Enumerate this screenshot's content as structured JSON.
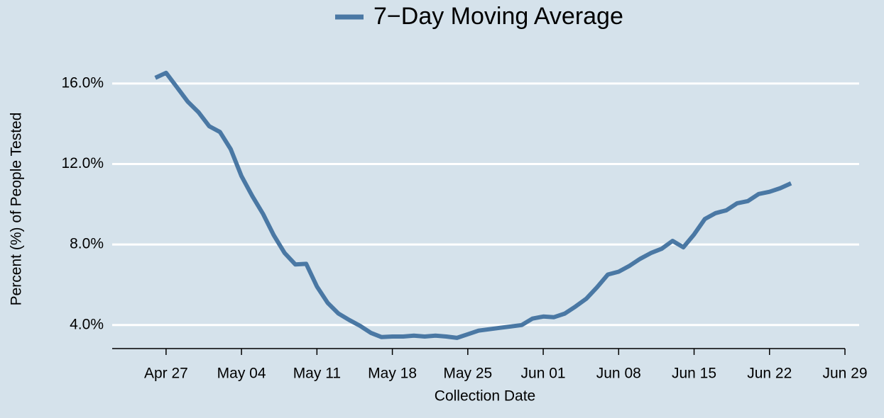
{
  "chart_data": {
    "type": "line",
    "x_label": "Collection Date",
    "y_label": "Percent (%) of People Tested",
    "x": [
      "Apr 26",
      "Apr 27",
      "Apr 28",
      "Apr 29",
      "Apr 30",
      "May 01",
      "May 02",
      "May 03",
      "May 04",
      "May 05",
      "May 06",
      "May 07",
      "May 08",
      "May 09",
      "May 10",
      "May 11",
      "May 12",
      "May 13",
      "May 14",
      "May 15",
      "May 16",
      "May 17",
      "May 18",
      "May 19",
      "May 20",
      "May 21",
      "May 22",
      "May 23",
      "May 24",
      "May 25",
      "May 26",
      "May 27",
      "May 28",
      "May 29",
      "May 30",
      "May 31",
      "Jun 01",
      "Jun 02",
      "Jun 03",
      "Jun 04",
      "Jun 05",
      "Jun 06",
      "Jun 07",
      "Jun 08",
      "Jun 09",
      "Jun 10",
      "Jun 11",
      "Jun 12",
      "Jun 13",
      "Jun 14",
      "Jun 15",
      "Jun 16",
      "Jun 17",
      "Jun 18",
      "Jun 19",
      "Jun 20",
      "Jun 21",
      "Jun 22",
      "Jun 23",
      "Jun 24"
    ],
    "series": [
      {
        "name": "7−Day Moving Average",
        "color": "#4a78a4",
        "values": [
          16.28,
          16.53,
          15.82,
          15.11,
          14.58,
          13.88,
          13.59,
          12.74,
          11.4,
          10.41,
          9.52,
          8.46,
          7.58,
          7.01,
          7.04,
          5.91,
          5.1,
          4.57,
          4.25,
          3.96,
          3.61,
          3.4,
          3.43,
          3.43,
          3.47,
          3.43,
          3.47,
          3.43,
          3.36,
          3.54,
          3.72,
          3.79,
          3.86,
          3.93,
          4.0,
          4.32,
          4.42,
          4.39,
          4.57,
          4.92,
          5.31,
          5.88,
          6.51,
          6.65,
          6.94,
          7.29,
          7.58,
          7.79,
          8.18,
          7.86,
          8.5,
          9.27,
          9.56,
          9.7,
          10.05,
          10.16,
          10.51,
          10.62,
          10.8,
          11.04
        ]
      }
    ],
    "xlim": [
      "Apr 22",
      "Jun 29"
    ],
    "xticks": [
      "Apr 27",
      "May 04",
      "May 11",
      "May 18",
      "May 25",
      "Jun 01",
      "Jun 08",
      "Jun 15",
      "Jun 22",
      "Jun 29"
    ],
    "ylim": [
      2.83,
      16.7
    ],
    "yticks": [
      {
        "value": 4,
        "label": "4.0%"
      },
      {
        "value": 8,
        "label": "8.0%"
      },
      {
        "value": 12,
        "label": "12.0%"
      },
      {
        "value": 16,
        "label": "16.0%"
      }
    ],
    "grid": true,
    "legend": "top"
  }
}
